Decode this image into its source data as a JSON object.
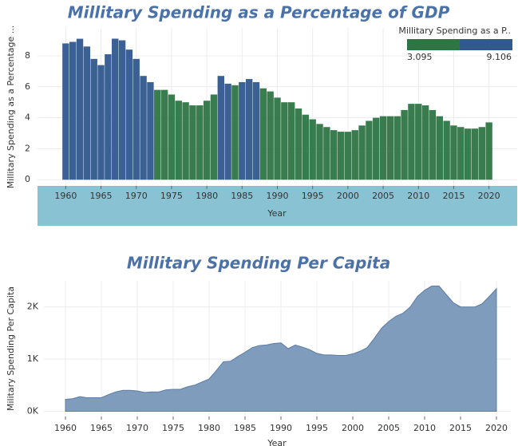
{
  "chart_data": [
    {
      "type": "bar",
      "title": "Millitary Spending as a Percentage of GDP",
      "x_label": "Year",
      "y_label": "Millitary Spending as a Percentage ...",
      "x": [
        1960,
        1961,
        1962,
        1963,
        1964,
        1965,
        1966,
        1967,
        1968,
        1969,
        1970,
        1971,
        1972,
        1973,
        1974,
        1975,
        1976,
        1977,
        1978,
        1979,
        1980,
        1981,
        1982,
        1983,
        1984,
        1985,
        1986,
        1987,
        1988,
        1989,
        1990,
        1991,
        1992,
        1993,
        1994,
        1995,
        1996,
        1997,
        1998,
        1999,
        2000,
        2001,
        2002,
        2003,
        2004,
        2005,
        2006,
        2007,
        2008,
        2009,
        2010,
        2011,
        2012,
        2013,
        2014,
        2015,
        2016,
        2017,
        2018,
        2019,
        2020
      ],
      "values": [
        8.8,
        8.9,
        9.1,
        8.6,
        7.8,
        7.4,
        8.1,
        9.106,
        9.0,
        8.4,
        7.8,
        6.7,
        6.3,
        5.8,
        5.8,
        5.5,
        5.1,
        5.0,
        4.8,
        4.8,
        5.1,
        5.5,
        6.7,
        6.2,
        6.1,
        6.3,
        6.5,
        6.3,
        5.9,
        5.7,
        5.3,
        5.0,
        5.0,
        4.6,
        4.2,
        3.9,
        3.6,
        3.4,
        3.2,
        3.1,
        3.095,
        3.2,
        3.5,
        3.8,
        4.0,
        4.1,
        4.1,
        4.1,
        4.5,
        4.9,
        4.9,
        4.8,
        4.5,
        4.1,
        3.8,
        3.5,
        3.4,
        3.3,
        3.3,
        3.4,
        3.7
      ],
      "xlim": [
        1956,
        2024
      ],
      "xticks": [
        1960,
        1965,
        1970,
        1975,
        1980,
        1985,
        1990,
        1995,
        2000,
        2005,
        2010,
        2015,
        2020
      ],
      "ylim": [
        -0.4,
        9.8
      ],
      "yticks": [
        0,
        2,
        4,
        6,
        8
      ],
      "grid": true,
      "colorbar": {
        "title": "Millitary Spending as a P..",
        "min": 3.095,
        "max": 9.106,
        "colors": [
          "#2e7544",
          "#30598e"
        ]
      }
    },
    {
      "type": "area",
      "title": "Millitary Spending Per Capita",
      "x_label": "Year",
      "y_label": "Military Spending Per Capita",
      "color": "#7f9cbd",
      "x": [
        1960,
        1961,
        1962,
        1963,
        1964,
        1965,
        1966,
        1967,
        1968,
        1969,
        1970,
        1971,
        1972,
        1973,
        1974,
        1975,
        1976,
        1977,
        1978,
        1979,
        1980,
        1981,
        1982,
        1983,
        1984,
        1985,
        1986,
        1987,
        1988,
        1989,
        1990,
        1991,
        1992,
        1993,
        1994,
        1995,
        1996,
        1997,
        1998,
        1999,
        2000,
        2001,
        2002,
        2003,
        2004,
        2005,
        2006,
        2007,
        2008,
        2009,
        2010,
        2011,
        2012,
        2013,
        2014,
        2015,
        2016,
        2017,
        2018,
        2019,
        2020
      ],
      "values": [
        230,
        240,
        280,
        260,
        260,
        260,
        320,
        370,
        400,
        400,
        390,
        360,
        370,
        370,
        410,
        420,
        420,
        470,
        500,
        560,
        620,
        780,
        950,
        960,
        1050,
        1130,
        1220,
        1260,
        1270,
        1300,
        1310,
        1200,
        1270,
        1230,
        1180,
        1110,
        1080,
        1080,
        1070,
        1070,
        1100,
        1150,
        1220,
        1400,
        1590,
        1720,
        1820,
        1880,
        2000,
        2200,
        2320,
        2400,
        2400,
        2240,
        2080,
        2000,
        2000,
        2000,
        2060,
        2200,
        2350
      ],
      "xlim": [
        1957,
        2022
      ],
      "xticks": [
        1960,
        1965,
        1970,
        1975,
        1980,
        1985,
        1990,
        1995,
        2000,
        2005,
        2010,
        2015,
        2020
      ],
      "ylim": [
        -100,
        2500
      ],
      "yticks": [
        {
          "value": 0,
          "label": "0K"
        },
        {
          "value": 1000,
          "label": "1K"
        },
        {
          "value": 2000,
          "label": "2K"
        }
      ],
      "grid": true
    }
  ]
}
